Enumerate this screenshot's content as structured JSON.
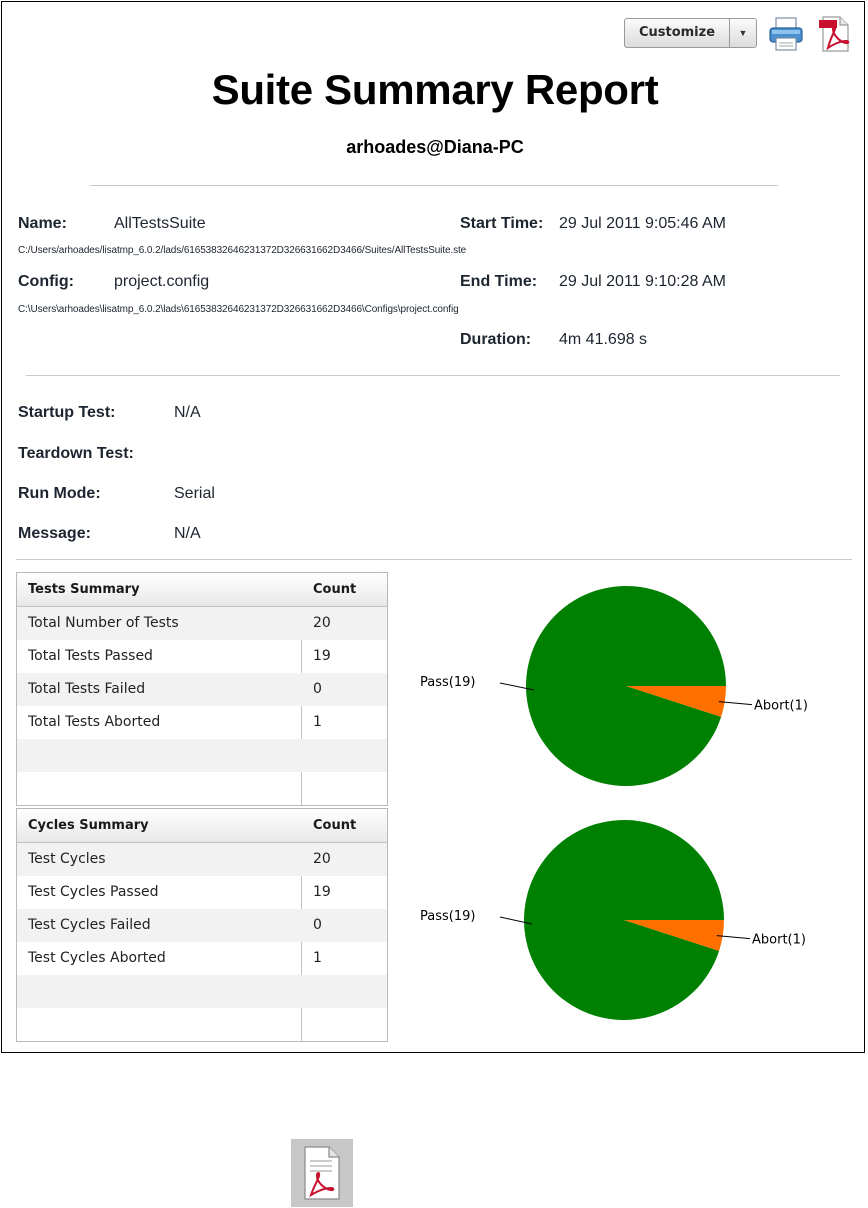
{
  "toolbar": {
    "customize_label": "Customize",
    "dropdown_arrow": "▼"
  },
  "report": {
    "title": "Suite Summary Report",
    "subtitle": "arhoades@Diana-PC"
  },
  "info": {
    "name_label": "Name:",
    "name_value": "AllTestsSuite",
    "name_path": "C:/Users/arhoades/lisatmp_6.0.2/lads/61653832646231372D326631662D3466/Suites/AllTestsSuite.ste",
    "config_label": "Config:",
    "config_value": "project.config",
    "config_path": "C:\\Users\\arhoades\\lisatmp_6.0.2\\lads\\61653832646231372D326631662D3466\\Configs\\project.config",
    "start_label": "Start Time:",
    "start_value": "29 Jul 2011 9:05:46 AM",
    "end_label": "End Time:",
    "end_value": "29 Jul 2011 9:10:28 AM",
    "duration_label": "Duration:",
    "duration_value": "4m 41.698 s"
  },
  "details": {
    "startup_label": "Startup Test:",
    "startup_value": "N/A",
    "teardown_label": "Teardown Test:",
    "teardown_value": "",
    "runmode_label": "Run Mode:",
    "runmode_value": "Serial",
    "message_label": "Message:",
    "message_value": "N/A"
  },
  "tests_table": {
    "header": [
      "Tests Summary",
      "Count"
    ],
    "rows": [
      [
        "Total Number of Tests",
        "20"
      ],
      [
        "Total Tests Passed",
        "19"
      ],
      [
        "Total Tests Failed",
        "0"
      ],
      [
        "Total Tests Aborted",
        "1"
      ],
      [
        "",
        ""
      ],
      [
        "",
        ""
      ]
    ]
  },
  "cycles_table": {
    "header": [
      "Cycles Summary",
      "Count"
    ],
    "rows": [
      [
        "Test Cycles",
        "20"
      ],
      [
        "Test Cycles Passed",
        "19"
      ],
      [
        "Test Cycles Failed",
        "0"
      ],
      [
        "Test Cycles Aborted",
        "1"
      ],
      [
        "",
        ""
      ],
      [
        "",
        ""
      ]
    ]
  },
  "chart_data": [
    {
      "type": "pie",
      "slices": [
        {
          "label": "Pass(19)",
          "value": 19,
          "color": "#008000"
        },
        {
          "label": "Abort(1)",
          "value": 1,
          "color": "#ff7000"
        }
      ]
    },
    {
      "type": "pie",
      "slices": [
        {
          "label": "Pass(19)",
          "value": 19,
          "color": "#008000"
        },
        {
          "label": "Abort(1)",
          "value": 1,
          "color": "#ff7000"
        }
      ]
    }
  ],
  "icons": {
    "print": "printer-icon",
    "pdf": "pdf-icon",
    "pdf_document": "pdf-document-icon"
  }
}
